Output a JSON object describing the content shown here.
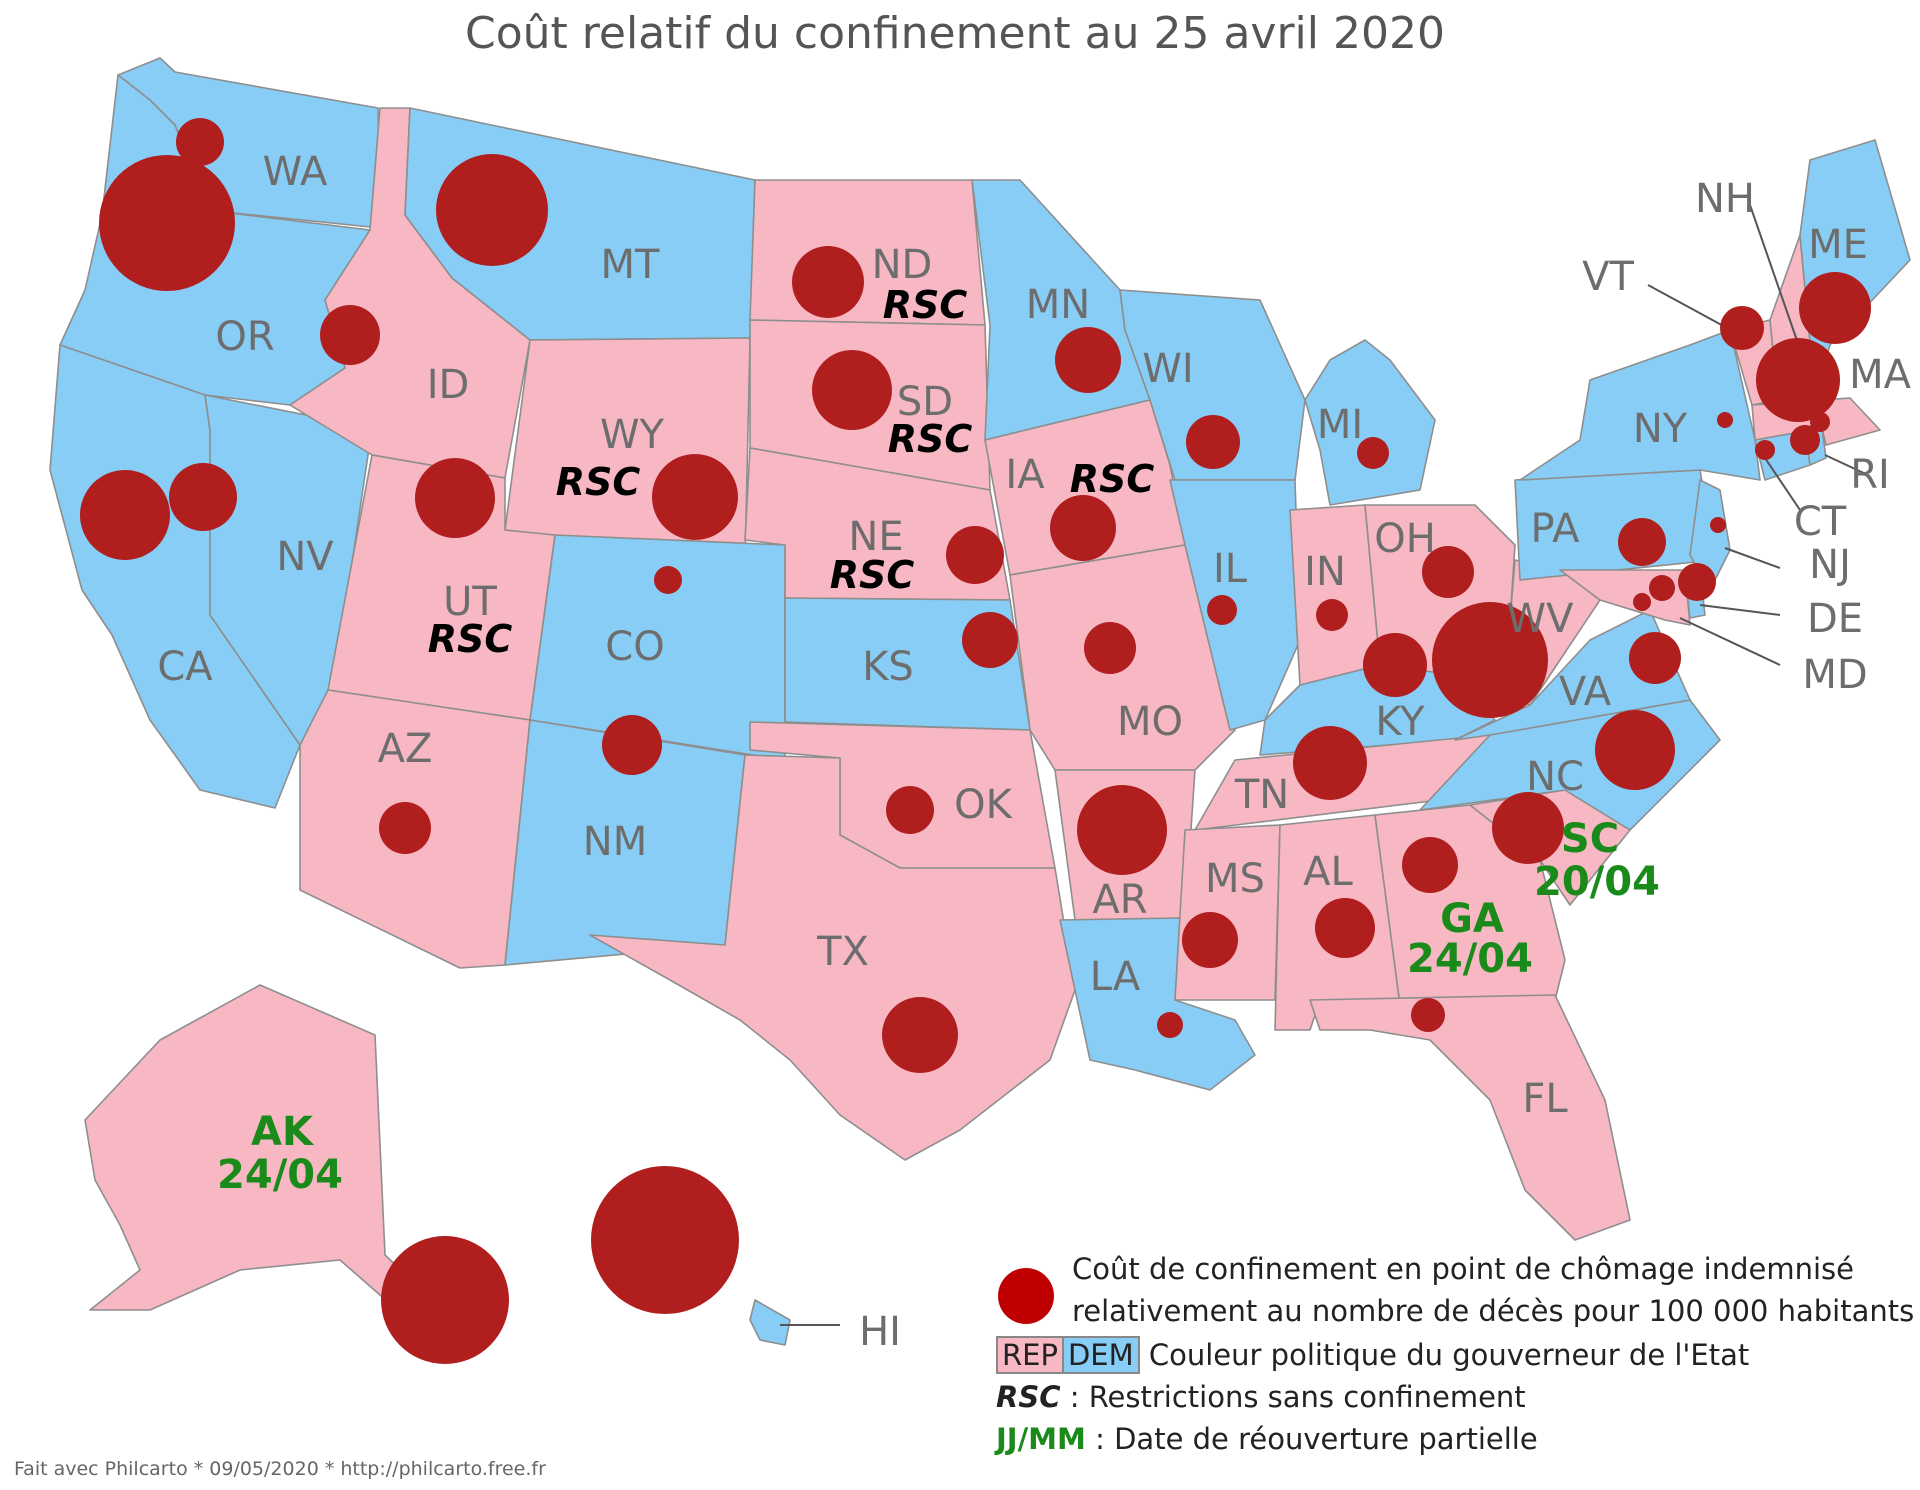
{
  "title": "Coût relatif du confinement au 25 avril 2020",
  "colors": {
    "rep": "#f7b8c4",
    "dem": "#88cdf5",
    "bubble": "#b01e1e",
    "reopen": "#1a8a1a"
  },
  "states": [
    {
      "code": "WA",
      "party": "dem"
    },
    {
      "code": "OR",
      "party": "dem"
    },
    {
      "code": "CA",
      "party": "dem"
    },
    {
      "code": "NV",
      "party": "dem"
    },
    {
      "code": "ID",
      "party": "rep"
    },
    {
      "code": "MT",
      "party": "dem"
    },
    {
      "code": "WY",
      "party": "rep",
      "rsc": true
    },
    {
      "code": "UT",
      "party": "rep",
      "rsc": true
    },
    {
      "code": "AZ",
      "party": "rep"
    },
    {
      "code": "CO",
      "party": "dem"
    },
    {
      "code": "NM",
      "party": "dem"
    },
    {
      "code": "ND",
      "party": "rep",
      "rsc": true
    },
    {
      "code": "SD",
      "party": "rep",
      "rsc": true
    },
    {
      "code": "NE",
      "party": "rep",
      "rsc": true
    },
    {
      "code": "KS",
      "party": "dem"
    },
    {
      "code": "OK",
      "party": "rep"
    },
    {
      "code": "TX",
      "party": "rep"
    },
    {
      "code": "MN",
      "party": "dem"
    },
    {
      "code": "IA",
      "party": "rep",
      "rsc": true
    },
    {
      "code": "MO",
      "party": "rep"
    },
    {
      "code": "AR",
      "party": "rep"
    },
    {
      "code": "LA",
      "party": "dem"
    },
    {
      "code": "WI",
      "party": "dem"
    },
    {
      "code": "IL",
      "party": "dem"
    },
    {
      "code": "MI",
      "party": "dem"
    },
    {
      "code": "IN",
      "party": "rep"
    },
    {
      "code": "OH",
      "party": "rep"
    },
    {
      "code": "KY",
      "party": "dem"
    },
    {
      "code": "TN",
      "party": "rep"
    },
    {
      "code": "MS",
      "party": "rep"
    },
    {
      "code": "AL",
      "party": "rep"
    },
    {
      "code": "GA",
      "party": "rep",
      "reopen": "24/04"
    },
    {
      "code": "FL",
      "party": "rep"
    },
    {
      "code": "SC",
      "party": "rep",
      "reopen": "20/04"
    },
    {
      "code": "NC",
      "party": "dem"
    },
    {
      "code": "VA",
      "party": "dem"
    },
    {
      "code": "WV",
      "party": "rep"
    },
    {
      "code": "PA",
      "party": "dem"
    },
    {
      "code": "NY",
      "party": "dem"
    },
    {
      "code": "NJ",
      "party": "dem"
    },
    {
      "code": "DE",
      "party": "dem"
    },
    {
      "code": "MD",
      "party": "rep"
    },
    {
      "code": "CT",
      "party": "dem"
    },
    {
      "code": "RI",
      "party": "dem"
    },
    {
      "code": "MA",
      "party": "rep"
    },
    {
      "code": "VT",
      "party": "rep"
    },
    {
      "code": "NH",
      "party": "rep"
    },
    {
      "code": "ME",
      "party": "dem"
    },
    {
      "code": "AK",
      "party": "rep",
      "reopen": "24/04"
    },
    {
      "code": "HI",
      "party": "dem"
    }
  ],
  "rsc_text": "RSC",
  "legend": {
    "bubble_line1": "Coût de confinement en point de chômage indemnisé",
    "bubble_line2": "relativement au nombre de décès pour 100 000 habitants",
    "rep_label": "REP",
    "dem_label": "DEM",
    "party_text": "Couleur politique du gouverneur de l'Etat",
    "rsc_key": "RSC",
    "rsc_text": " : Restrictions sans confinement",
    "date_key": "JJ/MM",
    "date_text": " : Date de réouverture partielle"
  },
  "footer": "Fait avec Philcarto * 09/05/2020 * http://philcarto.free.fr"
}
